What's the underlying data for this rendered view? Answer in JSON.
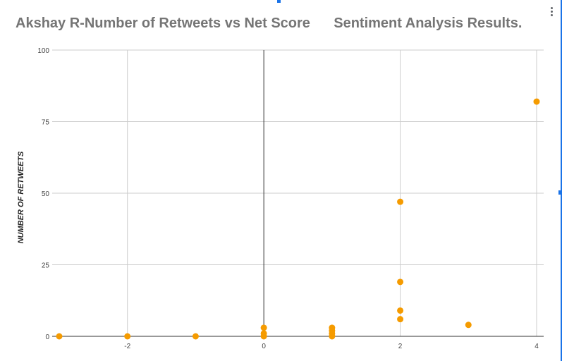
{
  "title": "Akshay R-Number of Retweets vs Net Score      Sentiment Analysis Results.",
  "colors": {
    "point": "#f59b00",
    "grid": "#cccccc",
    "axis": "#333333",
    "title": "#757575"
  },
  "icons": {
    "menu": "more-vertical-icon"
  },
  "chart_data": {
    "type": "scatter",
    "title": "Akshay R-Number of Retweets vs Net Score      Sentiment Analysis Results.",
    "xlabel": "",
    "ylabel": "NUMBER OF RETWEETS",
    "xlim": [
      -3,
      4
    ],
    "ylim": [
      0,
      100
    ],
    "xticks": [
      -2,
      0,
      2,
      4
    ],
    "yticks": [
      0,
      25,
      50,
      75,
      100
    ],
    "grid": true,
    "points": [
      {
        "x": -3,
        "y": 0
      },
      {
        "x": -2,
        "y": 0
      },
      {
        "x": -1,
        "y": 0
      },
      {
        "x": 0,
        "y": 0
      },
      {
        "x": 0,
        "y": 1
      },
      {
        "x": 0,
        "y": 3
      },
      {
        "x": 1,
        "y": 0
      },
      {
        "x": 1,
        "y": 1
      },
      {
        "x": 1,
        "y": 2
      },
      {
        "x": 1,
        "y": 3
      },
      {
        "x": 2,
        "y": 6
      },
      {
        "x": 2,
        "y": 9
      },
      {
        "x": 2,
        "y": 19
      },
      {
        "x": 2,
        "y": 47
      },
      {
        "x": 3,
        "y": 4
      },
      {
        "x": 4,
        "y": 82
      }
    ]
  }
}
